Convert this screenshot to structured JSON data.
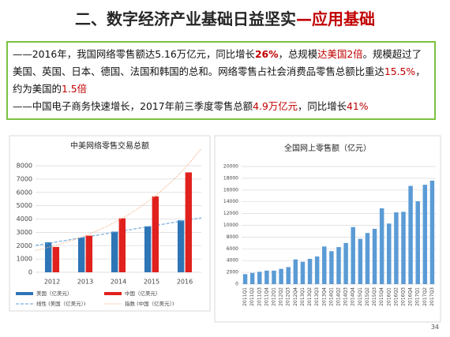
{
  "title": {
    "runs": [
      {
        "text": "二、数字经济产业基础日益坚实",
        "color": "#262626"
      },
      {
        "text": "—应用基础",
        "color": "#c00000"
      }
    ]
  },
  "text": {
    "paragraphs": [
      {
        "runs": [
          {
            "text": "——2016年，我国网络零售额达5.16万亿元，同比增长"
          },
          {
            "text": "26%",
            "color": "#c00000",
            "bold": true
          },
          {
            "text": "，总规模"
          },
          {
            "text": "达美国2倍",
            "color": "#c00000"
          },
          {
            "text": "。规模超过了美国、英国、日本、德国、法国和韩国的总和。网络零售占社会消费品零售总额比重达"
          },
          {
            "text": "15.5%",
            "color": "#c00000"
          },
          {
            "text": "，约为美国的"
          },
          {
            "text": "1.5倍",
            "color": "#c00000"
          }
        ]
      },
      {
        "runs": [
          {
            "text": "——中国电子商务快速增长，2017年前三季度零售总额"
          },
          {
            "text": "4.9万亿元",
            "color": "#c00000"
          },
          {
            "text": "，同比增长"
          },
          {
            "text": "41%",
            "color": "#c00000"
          }
        ]
      }
    ]
  },
  "chart_data": [
    {
      "type": "bar",
      "title": "中美网络零售交易总额",
      "categories": [
        "2012",
        "2013",
        "2014",
        "2015",
        "2016"
      ],
      "series": [
        {
          "name": "美国（亿美元）",
          "color": "#2e75b6",
          "values": [
            2250,
            2600,
            3050,
            3450,
            3900
          ],
          "trendline": {
            "name": "线性 (美国（亿美元）)",
            "type": "linear",
            "color": "#5b9bd5"
          }
        },
        {
          "name": "中国（亿美元）",
          "color": "#e0211d",
          "values": [
            1900,
            2750,
            4050,
            5700,
            7500
          ],
          "trendline": {
            "name": "指数 (中国（亿美元）)",
            "type": "exponential",
            "color": "#f4b183"
          }
        }
      ],
      "ylim": [
        0,
        8000
      ],
      "yticks": [
        0,
        1000,
        2000,
        3000,
        4000,
        5000,
        6000,
        7000,
        8000
      ],
      "grid": true
    },
    {
      "type": "bar",
      "title": "全国网上零售额（亿元）",
      "categories": [
        "2011Q1",
        "2011Q2",
        "2011Q3",
        "2011Q4",
        "2012Q1",
        "2012Q2",
        "2012Q3",
        "2012Q4",
        "2013Q1",
        "2013Q2",
        "2013Q3",
        "2013Q4",
        "2014Q1",
        "2014Q2",
        "2014Q3",
        "2014Q4",
        "2015Q1",
        "2015Q2",
        "2015Q3",
        "2015Q4",
        "2016Q1",
        "2016Q2",
        "2016Q3",
        "2016Q4",
        "2017Q1",
        "2017Q2",
        "2017Q3"
      ],
      "series": [
        {
          "color": "#5b9bd5",
          "values": [
            1700,
            1900,
            2100,
            2300,
            2300,
            2600,
            2900,
            4200,
            3800,
            4300,
            4700,
            6400,
            5600,
            6300,
            7000,
            9700,
            7700,
            8700,
            9400,
            12900,
            10300,
            12200,
            12300,
            16700,
            14100,
            16900,
            17600
          ]
        }
      ],
      "ylim": [
        0,
        20000
      ],
      "yticks": [
        0,
        2000,
        4000,
        6000,
        8000,
        10000,
        12000,
        14000,
        16000,
        18000,
        20000
      ],
      "grid": true
    }
  ],
  "page_number": "34"
}
